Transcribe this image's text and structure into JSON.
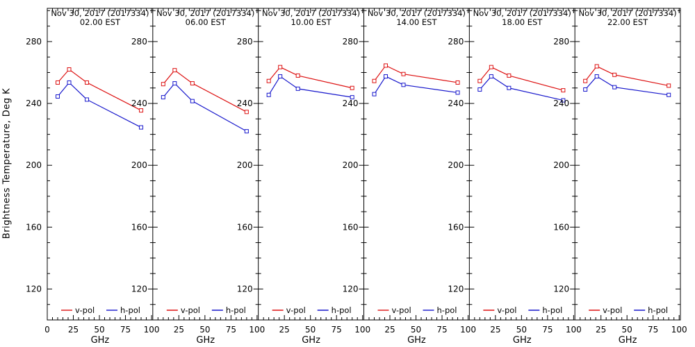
{
  "figure": {
    "background": "#ffffff",
    "axis_color": "#000000"
  },
  "chart_data": {
    "type": "line",
    "layout": "6 horizontal panels sharing one y scale, one panel per observation time",
    "x": [
      10,
      21,
      38,
      90
    ],
    "xlabel": "GHz",
    "ylabel": "Brightness Temperature, Deg K",
    "xlim": [
      0,
      101.2
    ],
    "ylim": [
      100,
      301.5
    ],
    "xticks": [
      0,
      25,
      50,
      75,
      100
    ],
    "yticks": [
      120,
      160,
      200,
      240,
      280
    ],
    "x_minor_step": 5,
    "y_minor_step": 10,
    "grid": false,
    "legend_position": "bottom-inside-each-panel",
    "legend": [
      "v-pol",
      "h-pol"
    ],
    "colors": {
      "v-pol": "#dd1111",
      "h-pol": "#1717cc"
    },
    "panels": [
      {
        "title": "Nov 30, 2017 (2017334)",
        "subtitle": "02.00 EST",
        "series": [
          {
            "name": "v-pol",
            "values": [
              253.5,
              262.0,
              253.5,
              235.5
            ]
          },
          {
            "name": "h-pol",
            "values": [
              244.5,
              253.5,
              242.5,
              224.5
            ]
          }
        ]
      },
      {
        "title": "Nov 30, 2017 (2017334)",
        "subtitle": "06.00 EST",
        "series": [
          {
            "name": "v-pol",
            "values": [
              252.5,
              261.5,
              253.0,
              234.5
            ]
          },
          {
            "name": "h-pol",
            "values": [
              244.0,
              253.0,
              241.5,
              222.0
            ]
          }
        ]
      },
      {
        "title": "Nov 30, 2017 (2017334)",
        "subtitle": "10.00 EST",
        "series": [
          {
            "name": "v-pol",
            "values": [
              254.5,
              263.5,
              258.0,
              250.0
            ]
          },
          {
            "name": "h-pol",
            "values": [
              245.5,
              257.5,
              249.5,
              244.0
            ]
          }
        ]
      },
      {
        "title": "Nov 30, 2017 (2017334)",
        "subtitle": "14.00 EST",
        "series": [
          {
            "name": "v-pol",
            "values": [
              254.5,
              264.5,
              259.0,
              253.5
            ]
          },
          {
            "name": "h-pol",
            "values": [
              246.0,
              257.5,
              252.0,
              247.0
            ]
          }
        ]
      },
      {
        "title": "Nov 30, 2017 (2017334)",
        "subtitle": "18.00 EST",
        "series": [
          {
            "name": "v-pol",
            "values": [
              254.5,
              263.5,
              258.0,
              248.5
            ]
          },
          {
            "name": "h-pol",
            "values": [
              249.0,
              257.5,
              250.0,
              242.0
            ]
          }
        ]
      },
      {
        "title": "Nov 30, 2017 (2017334)",
        "subtitle": "22.00 EST",
        "series": [
          {
            "name": "v-pol",
            "values": [
              254.5,
              264.0,
              258.5,
              251.5
            ]
          },
          {
            "name": "h-pol",
            "values": [
              249.0,
              257.5,
              250.5,
              245.5
            ]
          }
        ]
      }
    ]
  }
}
